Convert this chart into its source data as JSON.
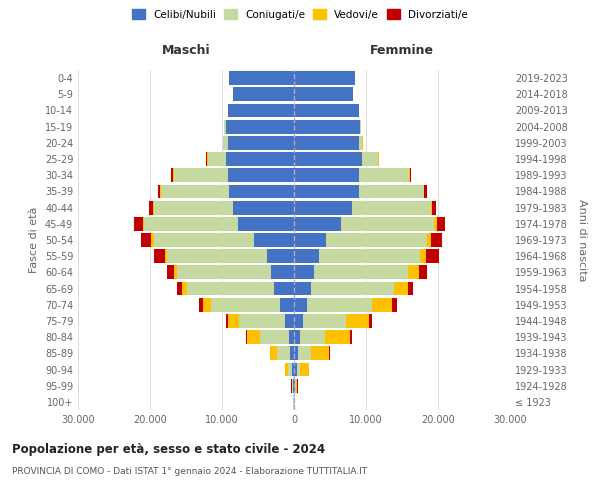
{
  "age_groups": [
    "100+",
    "95-99",
    "90-94",
    "85-89",
    "80-84",
    "75-79",
    "70-74",
    "65-69",
    "60-64",
    "55-59",
    "50-54",
    "45-49",
    "40-44",
    "35-39",
    "30-34",
    "25-29",
    "20-24",
    "15-19",
    "10-14",
    "5-9",
    "0-4"
  ],
  "birth_years": [
    "≤ 1923",
    "1924-1928",
    "1929-1933",
    "1934-1938",
    "1939-1943",
    "1944-1948",
    "1949-1953",
    "1954-1958",
    "1959-1963",
    "1964-1968",
    "1969-1973",
    "1974-1978",
    "1979-1983",
    "1984-1988",
    "1989-1993",
    "1994-1998",
    "1999-2003",
    "2004-2008",
    "2009-2013",
    "2014-2018",
    "2019-2023"
  ],
  "colors": {
    "celibi": "#4472c4",
    "coniugati": "#c5d9a0",
    "vedovi": "#ffc000",
    "divorziati": "#c00000"
  },
  "male": {
    "celibi": [
      50,
      150,
      300,
      500,
      700,
      1200,
      2000,
      2800,
      3200,
      3800,
      5500,
      7800,
      8500,
      9000,
      9200,
      9500,
      9200,
      9500,
      9200,
      8500,
      9000
    ],
    "coniugati": [
      30,
      100,
      500,
      1800,
      4000,
      6500,
      9500,
      12000,
      13000,
      13800,
      14000,
      13000,
      11000,
      9500,
      7500,
      2500,
      600,
      200,
      0,
      0,
      0
    ],
    "vedovi": [
      20,
      80,
      400,
      1000,
      1800,
      1500,
      1200,
      800,
      500,
      300,
      300,
      200,
      100,
      50,
      50,
      50,
      50,
      50,
      0,
      0,
      0
    ],
    "divorziati": [
      5,
      20,
      50,
      100,
      200,
      300,
      500,
      600,
      900,
      1500,
      1500,
      1200,
      600,
      400,
      300,
      200,
      50,
      30,
      0,
      0,
      0
    ]
  },
  "female": {
    "nubili": [
      50,
      200,
      400,
      600,
      800,
      1200,
      1800,
      2400,
      2800,
      3500,
      4500,
      6500,
      8000,
      9000,
      9000,
      9500,
      9000,
      9200,
      9000,
      8200,
      8500
    ],
    "coniugate": [
      20,
      80,
      500,
      1800,
      3500,
      6000,
      9000,
      11500,
      13000,
      14000,
      14000,
      13000,
      11000,
      9000,
      7000,
      2200,
      500,
      100,
      0,
      0,
      0
    ],
    "vedove": [
      30,
      200,
      1200,
      2500,
      3500,
      3200,
      2800,
      2000,
      1500,
      800,
      500,
      300,
      150,
      80,
      60,
      50,
      50,
      30,
      0,
      0,
      0
    ],
    "divorziate": [
      5,
      20,
      50,
      100,
      200,
      400,
      700,
      600,
      1200,
      1800,
      1500,
      1200,
      600,
      400,
      200,
      100,
      30,
      20,
      0,
      0,
      0
    ]
  },
  "xlim": 30000,
  "xticks": [
    -30000,
    -20000,
    -10000,
    0,
    10000,
    20000,
    30000
  ],
  "xticklabels": [
    "30.000",
    "20.000",
    "10.000",
    "0",
    "10.000",
    "20.000",
    "30.000"
  ],
  "title": "Popolazione per età, sesso e stato civile - 2024",
  "subtitle": "PROVINCIA DI COMO - Dati ISTAT 1° gennaio 2024 - Elaborazione TUTTITALIA.IT",
  "ylabel_left": "Fasce di età",
  "ylabel_right": "Anni di nascita",
  "header_left": "Maschi",
  "header_right": "Femmine",
  "legend_labels": [
    "Celibi/Nubili",
    "Coniugati/e",
    "Vedovi/e",
    "Divorziati/e"
  ],
  "bg_color": "#ffffff",
  "grid_color": "#cccccc"
}
